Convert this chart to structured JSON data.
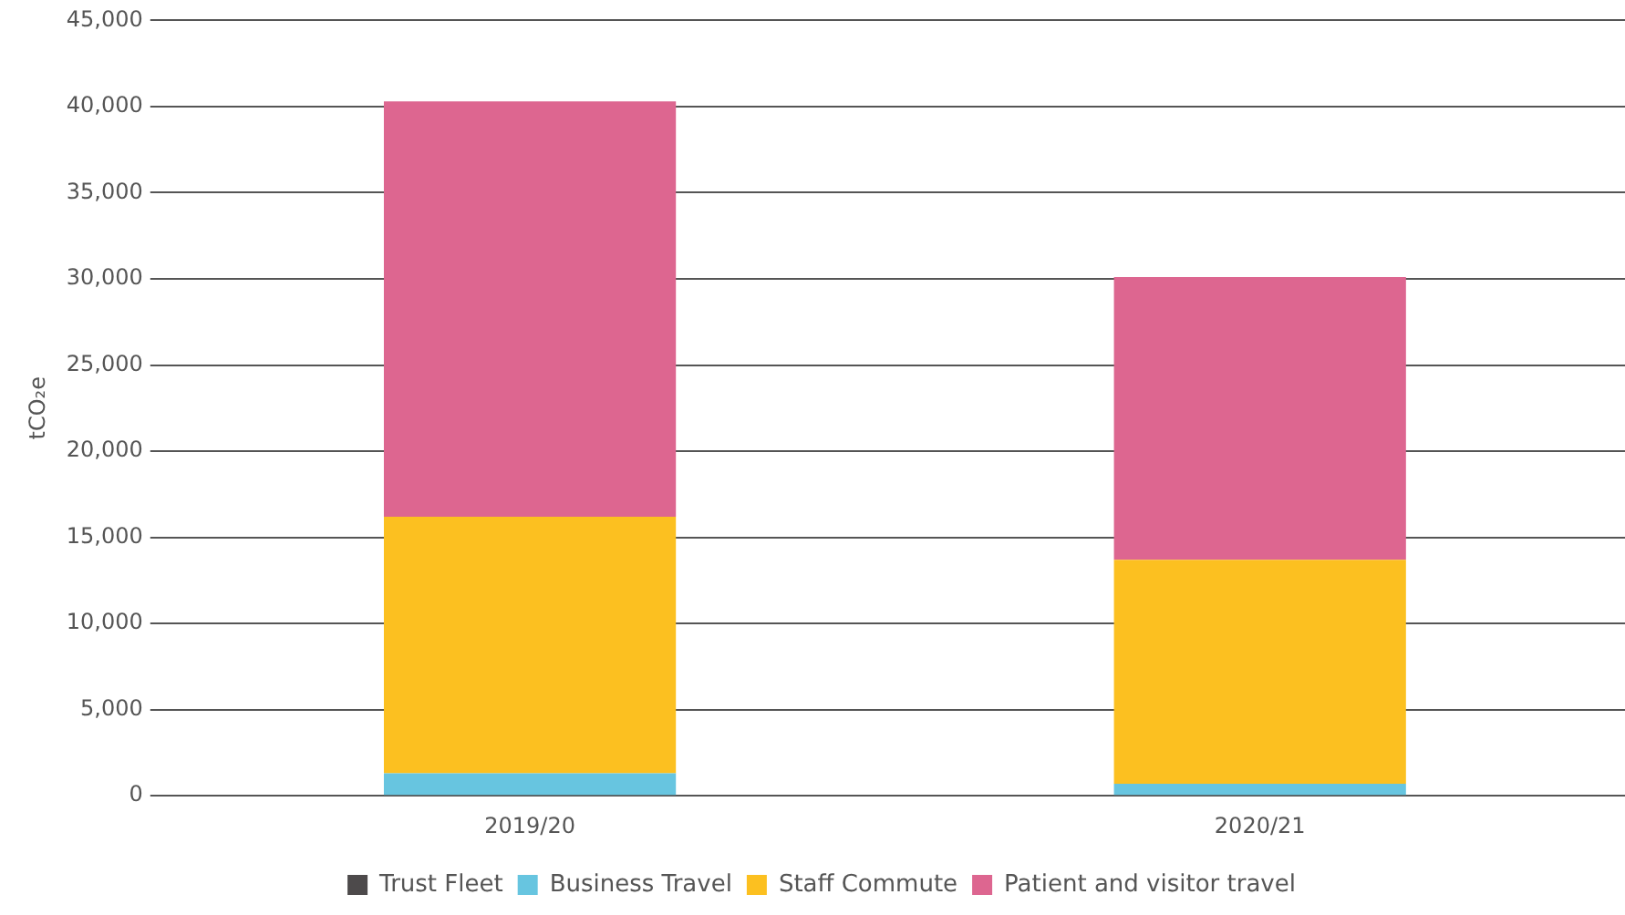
{
  "chart_data": {
    "type": "bar",
    "stacked": true,
    "ylabel": "tCO₂e",
    "categories": [
      "2019/20",
      "2020/21"
    ],
    "series": [
      {
        "name": "Trust Fleet",
        "color": "#4d4a4b",
        "values": [
          null,
          null
        ]
      },
      {
        "name": "Business Travel",
        "color": "#67c5e0",
        "values": [
          1300,
          700
        ]
      },
      {
        "name": "Staff Commute",
        "color": "#fcc020",
        "values": [
          14900,
          13000
        ]
      },
      {
        "name": "Patient and visitor travel",
        "color": "#dd6690",
        "values": [
          24100,
          16400
        ]
      }
    ],
    "ylim": [
      0,
      45000
    ],
    "yticks": [
      0,
      {
        "value": 5000,
        "label": "5,000"
      },
      {
        "value": 10000,
        "label": "10,000"
      },
      {
        "value": 15000,
        "label": "15,000"
      },
      {
        "value": 20000,
        "label": "20,000"
      },
      {
        "value": 25000,
        "label": "25,000"
      },
      {
        "value": 30000,
        "label": "30,000"
      },
      {
        "value": 35000,
        "label": "35,000"
      },
      {
        "value": 40000,
        "label": "40,000"
      },
      {
        "value": 45000,
        "label": "45,000"
      }
    ],
    "grid": "y",
    "legend": "bottom"
  }
}
